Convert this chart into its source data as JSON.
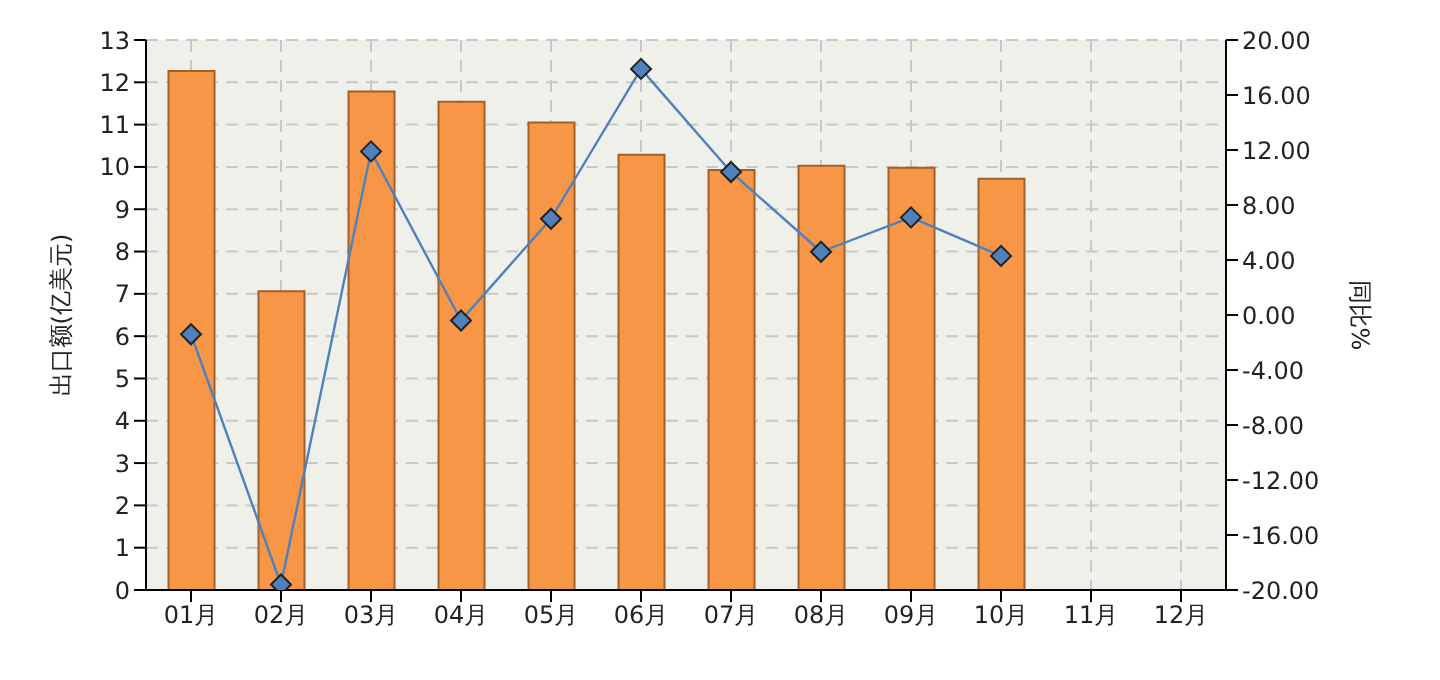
{
  "chart_data": {
    "type": "bar",
    "categories": [
      "01月",
      "02月",
      "03月",
      "04月",
      "05月",
      "06月",
      "07月",
      "08月",
      "09月",
      "10月",
      "11月",
      "12月"
    ],
    "ylabel": "出口额(亿美元)",
    "y2label": "同比%",
    "ylim": [
      0,
      13
    ],
    "yticks": [
      0,
      1,
      2,
      3,
      4,
      5,
      6,
      7,
      8,
      9,
      10,
      11,
      12,
      13
    ],
    "y2lim": [
      -20,
      20
    ],
    "y2ticks": [
      {
        "value": -20,
        "label": "-20.00"
      },
      {
        "value": -16,
        "label": "-16.00"
      },
      {
        "value": -12,
        "label": "-12.00"
      },
      {
        "value": -8,
        "label": "-8.00"
      },
      {
        "value": -4,
        "label": "-4.00"
      },
      {
        "value": 0,
        "label": "0.00"
      },
      {
        "value": 4,
        "label": "4.00"
      },
      {
        "value": 8,
        "label": "8.00"
      },
      {
        "value": 12,
        "label": "12.00"
      },
      {
        "value": 16,
        "label": "16.00"
      },
      {
        "value": 20,
        "label": "20.00"
      }
    ],
    "grid": true,
    "line_style": "solid",
    "series": [
      {
        "color": "#f79646",
        "values": [
          12.27,
          7.06,
          11.78,
          11.54,
          11.05,
          10.29,
          9.93,
          10.03,
          9.98,
          9.72,
          null,
          null
        ]
      },
      {
        "type": "line",
        "axis": "y2",
        "marker": "diamond",
        "color": "#4f81bd",
        "values": [
          -1.4,
          -19.6,
          11.9,
          -0.4,
          7.0,
          17.9,
          10.4,
          4.6,
          7.1,
          4.3,
          null,
          null
        ]
      }
    ]
  }
}
